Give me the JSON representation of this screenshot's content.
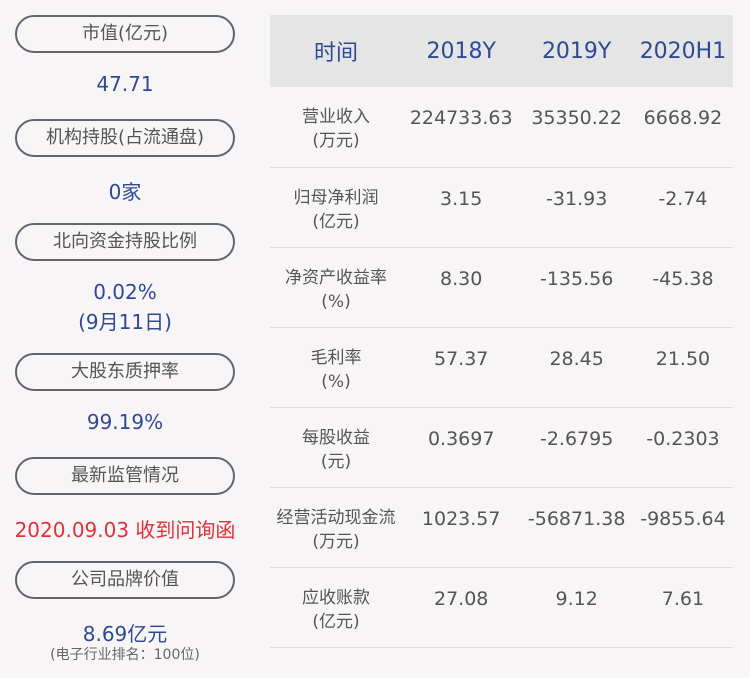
{
  "left": [
    {
      "label": "市值(亿元)",
      "value": "47.71"
    },
    {
      "label": "机构持股(占流通盘)",
      "value": "0家"
    },
    {
      "label": "北向资金持股比例",
      "value": "0.02%",
      "value2": "(9月11日)"
    },
    {
      "label": "大股东质押率",
      "value": "99.19%"
    },
    {
      "label": "最新监管情况",
      "value": "2020.09.03 收到问询函"
    },
    {
      "label": "公司品牌价值",
      "value": "8.69亿元",
      "value2": "(电子行业排名：100位)"
    }
  ],
  "table": {
    "headers": [
      "时间",
      "2018Y",
      "2019Y",
      "2020H1"
    ],
    "rows": [
      {
        "l1": "营业收入",
        "l2": "(万元)",
        "v": [
          "224733.63",
          "35350.22",
          "6668.92"
        ]
      },
      {
        "l1": "归母净利润",
        "l2": "(亿元)",
        "v": [
          "3.15",
          "-31.93",
          "-2.74"
        ]
      },
      {
        "l1": "净资产收益率",
        "l2": "(%)",
        "v": [
          "8.30",
          "-135.56",
          "-45.38"
        ]
      },
      {
        "l1": "毛利率",
        "l2": "(%)",
        "v": [
          "57.37",
          "28.45",
          "21.50"
        ]
      },
      {
        "l1": "每股收益",
        "l2": "(元)",
        "v": [
          "0.3697",
          "-2.6795",
          "-0.2303"
        ]
      },
      {
        "l1": "经营活动现金流",
        "l2": "(万元)",
        "v": [
          "1023.57",
          "-56871.38",
          "-9855.64"
        ]
      },
      {
        "l1": "应收账款",
        "l2": "(亿元)",
        "v": [
          "27.08",
          "9.12",
          "7.61"
        ]
      }
    ]
  },
  "colors": {
    "accent": "#2f4a94",
    "alert": "#e0303a"
  }
}
